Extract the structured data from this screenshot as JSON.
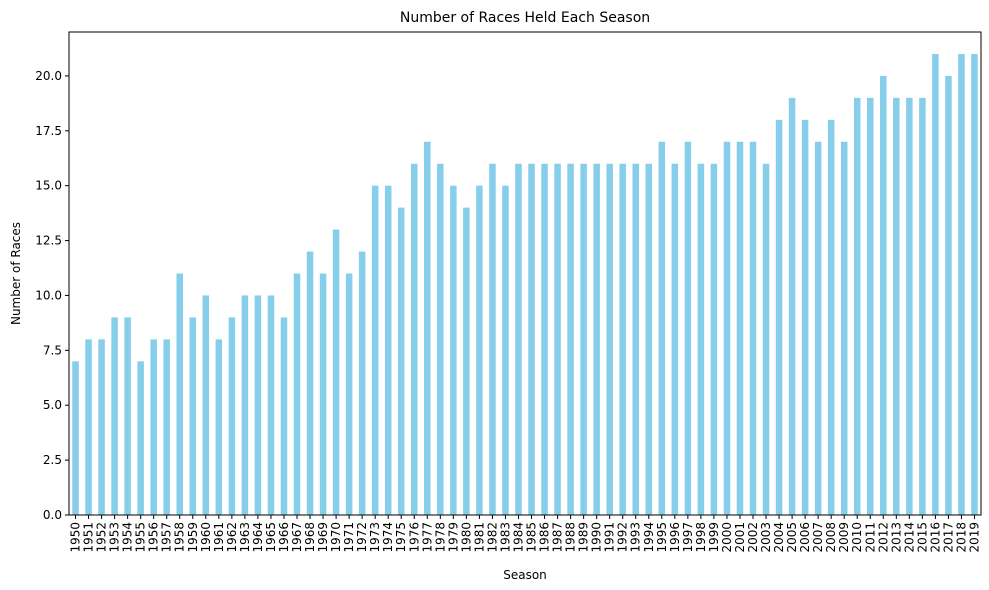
{
  "chart_data": {
    "type": "bar",
    "title": "Number of Races Held Each Season",
    "xlabel": "Season",
    "ylabel": "Number of Races",
    "color": "#87ceeb",
    "ylim": [
      0,
      22
    ],
    "yticks": [
      "0.0",
      "2.5",
      "5.0",
      "7.5",
      "10.0",
      "12.5",
      "15.0",
      "17.5",
      "20.0"
    ],
    "categories": [
      "1950",
      "1951",
      "1952",
      "1953",
      "1954",
      "1955",
      "1956",
      "1957",
      "1958",
      "1959",
      "1960",
      "1961",
      "1962",
      "1963",
      "1964",
      "1965",
      "1966",
      "1967",
      "1968",
      "1969",
      "1970",
      "1971",
      "1972",
      "1973",
      "1974",
      "1975",
      "1976",
      "1977",
      "1978",
      "1979",
      "1980",
      "1981",
      "1982",
      "1983",
      "1984",
      "1985",
      "1986",
      "1987",
      "1988",
      "1989",
      "1990",
      "1991",
      "1992",
      "1993",
      "1994",
      "1995",
      "1996",
      "1997",
      "1998",
      "1999",
      "2000",
      "2001",
      "2002",
      "2003",
      "2004",
      "2005",
      "2006",
      "2007",
      "2008",
      "2009",
      "2010",
      "2011",
      "2012",
      "2013",
      "2014",
      "2015",
      "2016",
      "2017",
      "2018",
      "2019"
    ],
    "values": [
      7,
      8,
      8,
      9,
      9,
      7,
      8,
      8,
      11,
      9,
      10,
      8,
      9,
      10,
      10,
      10,
      9,
      11,
      12,
      11,
      13,
      11,
      12,
      15,
      15,
      14,
      16,
      17,
      16,
      15,
      14,
      15,
      16,
      15,
      16,
      16,
      16,
      16,
      16,
      16,
      16,
      16,
      16,
      16,
      16,
      17,
      16,
      17,
      16,
      16,
      17,
      17,
      17,
      16,
      18,
      19,
      18,
      17,
      18,
      17,
      19,
      19,
      20,
      19,
      19,
      19,
      21,
      20,
      21,
      21
    ],
    "grid": false,
    "legend": false
  }
}
